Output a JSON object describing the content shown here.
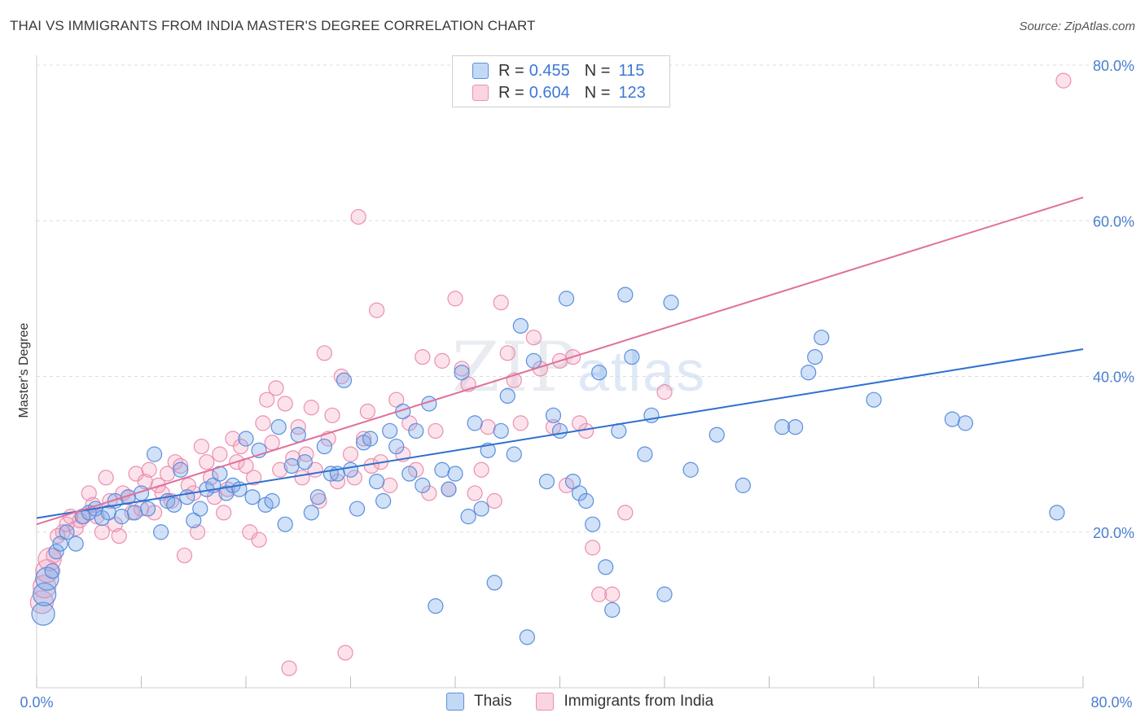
{
  "title": "THAI VS IMMIGRANTS FROM INDIA MASTER'S DEGREE CORRELATION CHART",
  "source": "Source: ZipAtlas.com",
  "watermark": {
    "zip": "ZIP",
    "atlas": "atlas"
  },
  "legend_top": [
    {
      "r_label": "R =",
      "r_value": "0.455",
      "n_label": "N =",
      "n_value": "115"
    },
    {
      "r_label": "R =",
      "r_value": "0.604",
      "n_label": "N =",
      "n_value": "123"
    }
  ],
  "colors": {
    "thai_fill": "rgba(120,170,235,0.35)",
    "thai_stroke": "#5b8fdc",
    "thai_line": "#2f6fd0",
    "india_fill": "rgba(245,160,190,0.30)",
    "india_stroke": "#eb8fb0",
    "india_line": "#e0709a",
    "tick_text": "#4a7fd1",
    "grid": "#dddddd"
  },
  "chart_data": {
    "type": "scatter",
    "xlabel": "",
    "ylabel": "Master's Degree",
    "xlim": [
      0,
      80
    ],
    "ylim": [
      0,
      80
    ],
    "x_tick_labels": [
      "0.0%",
      "80.0%"
    ],
    "y_tick_labels": [
      "20.0%",
      "40.0%",
      "60.0%",
      "80.0%"
    ],
    "y_ticks": [
      20,
      40,
      60,
      80
    ],
    "grid": "horizontal dashed",
    "legend": "bottom-center",
    "series": [
      {
        "name": "Thais",
        "trend": {
          "x": [
            0,
            80
          ],
          "y": [
            21.8,
            43.5
          ]
        },
        "points": [
          [
            0.5,
            9.5
          ],
          [
            0.6,
            12
          ],
          [
            0.8,
            14
          ],
          [
            1.2,
            15
          ],
          [
            1.5,
            17.5
          ],
          [
            1.8,
            18.5
          ],
          [
            2.3,
            20
          ],
          [
            3.0,
            18.5
          ],
          [
            3.5,
            22
          ],
          [
            4.0,
            22.5
          ],
          [
            4.5,
            23
          ],
          [
            5.0,
            21.8
          ],
          [
            5.5,
            22.5
          ],
          [
            6.0,
            24
          ],
          [
            6.5,
            22
          ],
          [
            7.0,
            24.5
          ],
          [
            7.5,
            22.5
          ],
          [
            8.0,
            25
          ],
          [
            8.5,
            23
          ],
          [
            9.0,
            30
          ],
          [
            9.5,
            20
          ],
          [
            10,
            24
          ],
          [
            10.5,
            23.5
          ],
          [
            11,
            28
          ],
          [
            11.5,
            24.5
          ],
          [
            12,
            21.5
          ],
          [
            12.5,
            23
          ],
          [
            13,
            25.5
          ],
          [
            13.5,
            26
          ],
          [
            14,
            27.5
          ],
          [
            14.5,
            25
          ],
          [
            15,
            26
          ],
          [
            15.5,
            25.5
          ],
          [
            16,
            32
          ],
          [
            16.5,
            24.5
          ],
          [
            17,
            30.5
          ],
          [
            17.5,
            23.5
          ],
          [
            18,
            24
          ],
          [
            18.5,
            33.5
          ],
          [
            19,
            21
          ],
          [
            19.5,
            28.5
          ],
          [
            20,
            32.5
          ],
          [
            20.5,
            29
          ],
          [
            21,
            22.5
          ],
          [
            21.5,
            24.5
          ],
          [
            22,
            31
          ],
          [
            22.5,
            27.5
          ],
          [
            23,
            27.5
          ],
          [
            23.5,
            39.5
          ],
          [
            24,
            28
          ],
          [
            24.5,
            23
          ],
          [
            25,
            31.5
          ],
          [
            25.5,
            32
          ],
          [
            26,
            26.5
          ],
          [
            26.5,
            24
          ],
          [
            27,
            33
          ],
          [
            27.5,
            31
          ],
          [
            28,
            35.5
          ],
          [
            28.5,
            27.5
          ],
          [
            29,
            33
          ],
          [
            29.5,
            26
          ],
          [
            30,
            36.5
          ],
          [
            30.5,
            10.5
          ],
          [
            31,
            28
          ],
          [
            31.5,
            25.5
          ],
          [
            32,
            27.5
          ],
          [
            32.5,
            40.5
          ],
          [
            33,
            22
          ],
          [
            33.5,
            34
          ],
          [
            34,
            23
          ],
          [
            34.5,
            30.5
          ],
          [
            35,
            13.5
          ],
          [
            35.5,
            33
          ],
          [
            36,
            37.5
          ],
          [
            36.5,
            30
          ],
          [
            37,
            46.5
          ],
          [
            37.5,
            6.5
          ],
          [
            38,
            42
          ],
          [
            39,
            26.5
          ],
          [
            39.5,
            35
          ],
          [
            40,
            33
          ],
          [
            40.5,
            50
          ],
          [
            41,
            26.5
          ],
          [
            41.5,
            25
          ],
          [
            42,
            24
          ],
          [
            42.5,
            21
          ],
          [
            43,
            40.5
          ],
          [
            43.5,
            15.5
          ],
          [
            44,
            10
          ],
          [
            44.5,
            33
          ],
          [
            45,
            50.5
          ],
          [
            45.5,
            42.5
          ],
          [
            47,
            35
          ],
          [
            46.5,
            30
          ],
          [
            48,
            12
          ],
          [
            48.5,
            49.5
          ],
          [
            50,
            28
          ],
          [
            52,
            32.5
          ],
          [
            54,
            26
          ],
          [
            57,
            33.5
          ],
          [
            58,
            33.5
          ],
          [
            59,
            40.5
          ],
          [
            59.5,
            42.5
          ],
          [
            60,
            45
          ],
          [
            64,
            37
          ],
          [
            70,
            34.5
          ],
          [
            71,
            34
          ],
          [
            78,
            22.5
          ]
        ]
      },
      {
        "name": "Immigrants from India",
        "trend": {
          "x": [
            0,
            80
          ],
          "y": [
            21.0,
            63.0
          ]
        },
        "points": [
          [
            0.4,
            11
          ],
          [
            0.6,
            13
          ],
          [
            0.8,
            15
          ],
          [
            1.0,
            16.5
          ],
          [
            1.3,
            17
          ],
          [
            1.6,
            19.5
          ],
          [
            2.0,
            20
          ],
          [
            2.3,
            21
          ],
          [
            2.6,
            22
          ],
          [
            3.0,
            20.5
          ],
          [
            3.3,
            21.5
          ],
          [
            3.6,
            22
          ],
          [
            4.0,
            25
          ],
          [
            4.3,
            23.5
          ],
          [
            4.6,
            22
          ],
          [
            5.0,
            20
          ],
          [
            5.3,
            27
          ],
          [
            5.6,
            24
          ],
          [
            6.0,
            21
          ],
          [
            6.3,
            19.5
          ],
          [
            6.6,
            25
          ],
          [
            7.0,
            24.5
          ],
          [
            7.3,
            22.5
          ],
          [
            7.6,
            27.5
          ],
          [
            8.0,
            23
          ],
          [
            8.3,
            26.5
          ],
          [
            8.6,
            28
          ],
          [
            9.0,
            22.5
          ],
          [
            9.3,
            26
          ],
          [
            9.6,
            25
          ],
          [
            10,
            27.5
          ],
          [
            10.3,
            24
          ],
          [
            10.6,
            29
          ],
          [
            11,
            28.5
          ],
          [
            11.3,
            17
          ],
          [
            11.6,
            26
          ],
          [
            12,
            25
          ],
          [
            12.3,
            20
          ],
          [
            12.6,
            31
          ],
          [
            13,
            29
          ],
          [
            13.3,
            27
          ],
          [
            13.6,
            24.5
          ],
          [
            14,
            30
          ],
          [
            14.3,
            22.5
          ],
          [
            14.6,
            25.5
          ],
          [
            15,
            32
          ],
          [
            15.3,
            29
          ],
          [
            15.6,
            31
          ],
          [
            16,
            28.5
          ],
          [
            16.3,
            20
          ],
          [
            16.6,
            27
          ],
          [
            17,
            19
          ],
          [
            17.3,
            34
          ],
          [
            17.6,
            37
          ],
          [
            18,
            31.5
          ],
          [
            18.3,
            38.5
          ],
          [
            18.6,
            28
          ],
          [
            19,
            36.5
          ],
          [
            19.3,
            2.5
          ],
          [
            19.6,
            29.5
          ],
          [
            20,
            33.5
          ],
          [
            20.3,
            27
          ],
          [
            20.6,
            30
          ],
          [
            21,
            36
          ],
          [
            21.3,
            28
          ],
          [
            21.6,
            24
          ],
          [
            22,
            43
          ],
          [
            22.3,
            32
          ],
          [
            22.6,
            35
          ],
          [
            23,
            26.5
          ],
          [
            23.3,
            40
          ],
          [
            23.6,
            4.5
          ],
          [
            24,
            30
          ],
          [
            24.3,
            27
          ],
          [
            24.6,
            60.5
          ],
          [
            25,
            32
          ],
          [
            25.3,
            35.5
          ],
          [
            25.6,
            28.5
          ],
          [
            26,
            48.5
          ],
          [
            26.3,
            29
          ],
          [
            27,
            26
          ],
          [
            27.5,
            37
          ],
          [
            28,
            30
          ],
          [
            28.5,
            34
          ],
          [
            29,
            28
          ],
          [
            29.5,
            42.5
          ],
          [
            30,
            25
          ],
          [
            30.5,
            33
          ],
          [
            31,
            42
          ],
          [
            31.5,
            25.5
          ],
          [
            32,
            50
          ],
          [
            32.5,
            41
          ],
          [
            33,
            39
          ],
          [
            33.5,
            25
          ],
          [
            34,
            28
          ],
          [
            34.5,
            33.5
          ],
          [
            35,
            24
          ],
          [
            35.5,
            49.5
          ],
          [
            36,
            43
          ],
          [
            36.5,
            39.5
          ],
          [
            37,
            34
          ],
          [
            38,
            45
          ],
          [
            38.5,
            41
          ],
          [
            39.5,
            33.5
          ],
          [
            40,
            42
          ],
          [
            40.5,
            26
          ],
          [
            41,
            42.5
          ],
          [
            41.5,
            34
          ],
          [
            42,
            33
          ],
          [
            42.5,
            18
          ],
          [
            43,
            12
          ],
          [
            44,
            12
          ],
          [
            45,
            22.5
          ],
          [
            48,
            38
          ],
          [
            78.5,
            78
          ]
        ]
      }
    ]
  }
}
